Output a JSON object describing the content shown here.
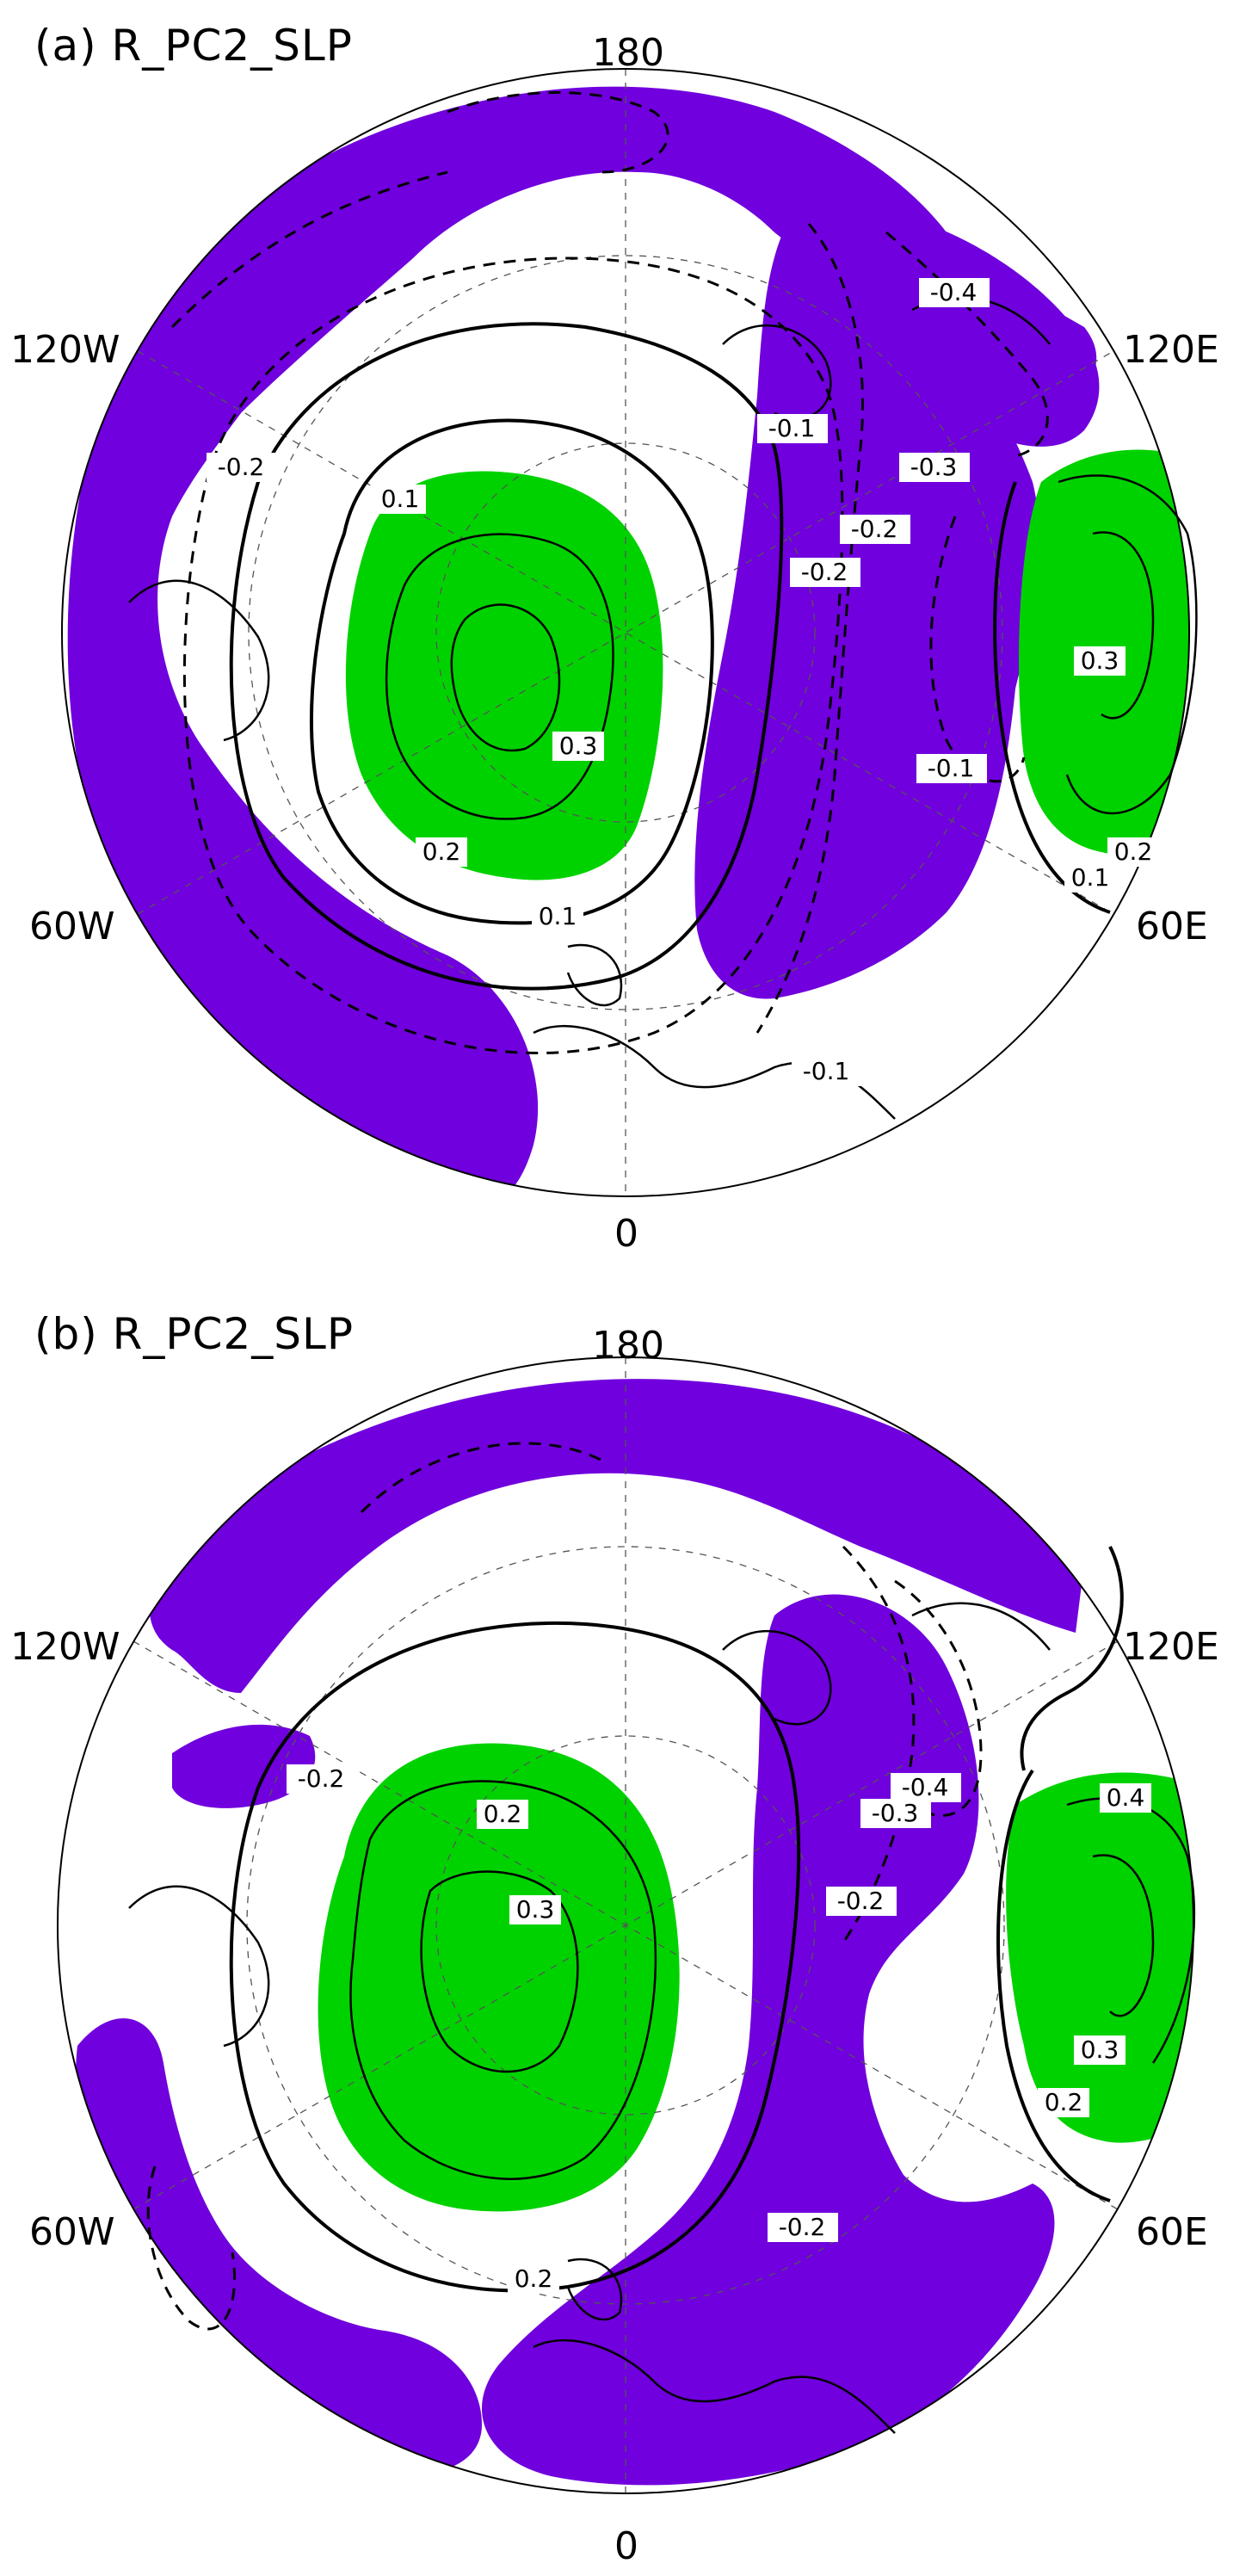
{
  "colors": {
    "positive_shading": "#00d200",
    "negative_shading": "#7000dd",
    "contour": "#000000",
    "background": "#ffffff"
  },
  "panels": [
    {
      "id": "a",
      "title": "(a) R_PC2_SLP",
      "longitude_labels": {
        "top": "180",
        "bottom": "0",
        "left_upper": "120W",
        "left_lower": "60W",
        "right_upper": "120E",
        "right_lower": "60E"
      },
      "contour_labels": [
        "-0.4",
        "-0.3",
        "-0.2",
        "-0.2",
        "-0.2",
        "-0.1",
        "-0.1",
        "-0.1",
        "0.1",
        "0.1",
        "0.1",
        "0.2",
        "0.2",
        "0.3",
        "0.3"
      ]
    },
    {
      "id": "b",
      "title": "(b) R_PC2_SLP",
      "longitude_labels": {
        "top": "180",
        "bottom": "0",
        "left_upper": "120W",
        "left_lower": "60W",
        "right_upper": "120E",
        "right_lower": "60E"
      },
      "contour_labels": [
        "-0.4",
        "-0.3",
        "-0.2",
        "-0.2",
        "-0.2",
        "0.2",
        "0.2",
        "0.2",
        "0.3",
        "0.3",
        "0.4"
      ]
    }
  ]
}
